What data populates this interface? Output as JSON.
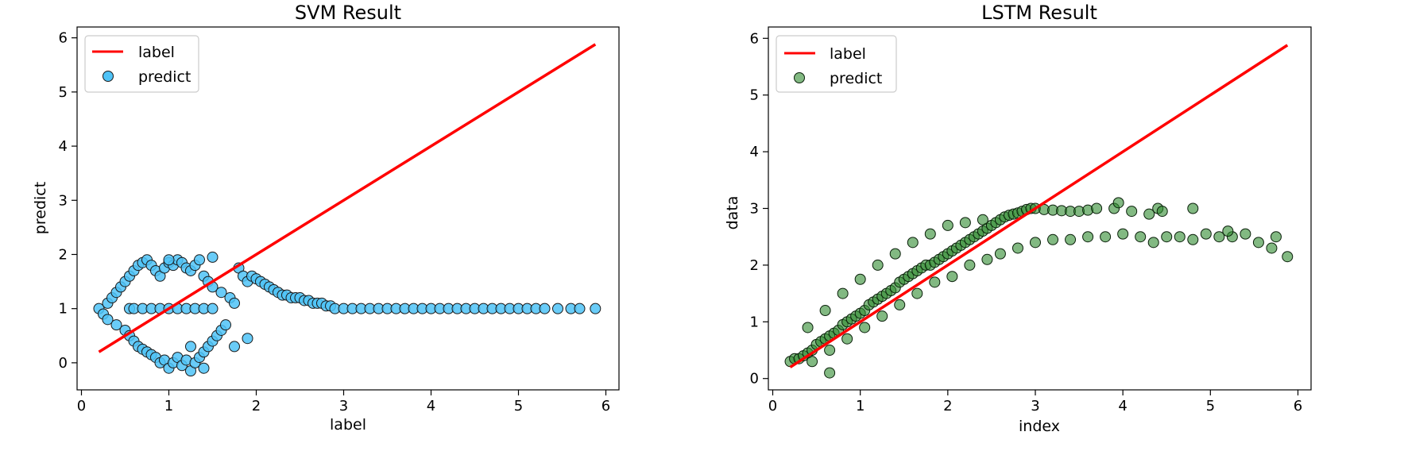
{
  "chart_data": [
    {
      "type": "scatter",
      "title": "SVM Result",
      "xlabel": "label",
      "ylabel": "predict",
      "xlim": [
        -0.05,
        6.15
      ],
      "ylim": [
        -0.5,
        6.2
      ],
      "xticks": [
        "0",
        "1",
        "2",
        "3",
        "4",
        "5",
        "6"
      ],
      "yticks": [
        "0",
        "1",
        "2",
        "3",
        "4",
        "5",
        "6"
      ],
      "grid": false,
      "legend_position": "top-left",
      "series": [
        {
          "name": "label",
          "kind": "line",
          "color": "#ff0000",
          "x": [
            0.2,
            5.88
          ],
          "y": [
            0.2,
            5.88
          ]
        },
        {
          "name": "predict",
          "kind": "scatter",
          "color": "#4fc3f7",
          "edgecolor": "#1a1a1a",
          "x": [
            0.2,
            0.25,
            0.3,
            0.3,
            0.35,
            0.4,
            0.4,
            0.45,
            0.5,
            0.5,
            0.55,
            0.55,
            0.6,
            0.6,
            0.65,
            0.65,
            0.7,
            0.7,
            0.75,
            0.75,
            0.8,
            0.8,
            0.85,
            0.85,
            0.9,
            0.9,
            0.95,
            0.95,
            1.0,
            1.0,
            1.05,
            1.05,
            1.1,
            1.1,
            1.15,
            1.15,
            1.2,
            1.2,
            1.25,
            1.25,
            1.3,
            1.3,
            1.35,
            1.35,
            1.4,
            1.4,
            1.45,
            1.45,
            1.5,
            1.5,
            1.55,
            1.6,
            1.6,
            1.65,
            1.7,
            1.75,
            1.8,
            1.85,
            1.9,
            1.95,
            2.0,
            2.05,
            2.1,
            2.15,
            2.2,
            2.25,
            2.3,
            2.35,
            2.4,
            2.45,
            2.5,
            2.55,
            2.6,
            2.65,
            2.7,
            2.75,
            2.8,
            2.85,
            0.55,
            0.6,
            0.7,
            0.8,
            0.9,
            1.0,
            1.1,
            1.2,
            1.3,
            1.4,
            1.5,
            1.25,
            1.4,
            1.75,
            1.9,
            1.0,
            1.5,
            2.9,
            3.0,
            3.1,
            3.2,
            3.3,
            3.4,
            3.5,
            3.6,
            3.7,
            3.8,
            3.9,
            4.0,
            4.1,
            4.2,
            4.3,
            4.4,
            4.5,
            4.6,
            4.7,
            4.8,
            4.9,
            5.0,
            5.1,
            5.2,
            5.3,
            5.45,
            5.6,
            5.7,
            5.88
          ],
          "y": [
            1.0,
            0.9,
            1.1,
            0.8,
            1.2,
            0.7,
            1.3,
            1.4,
            0.6,
            1.5,
            0.5,
            1.6,
            0.4,
            1.7,
            0.3,
            1.8,
            0.25,
            1.85,
            0.2,
            1.9,
            0.15,
            1.8,
            0.1,
            1.7,
            0.0,
            1.6,
            0.05,
            1.75,
            -0.1,
            1.85,
            0.0,
            1.8,
            0.1,
            1.9,
            -0.05,
            1.85,
            0.05,
            1.75,
            -0.15,
            1.7,
            0.0,
            1.8,
            0.1,
            1.9,
            0.2,
            1.6,
            0.3,
            1.5,
            0.4,
            1.4,
            0.5,
            0.6,
            1.3,
            0.7,
            1.2,
            1.1,
            1.75,
            1.6,
            1.5,
            1.6,
            1.55,
            1.5,
            1.45,
            1.4,
            1.35,
            1.3,
            1.25,
            1.25,
            1.2,
            1.2,
            1.2,
            1.15,
            1.15,
            1.1,
            1.1,
            1.1,
            1.05,
            1.05,
            1.0,
            1.0,
            1.0,
            1.0,
            1.0,
            1.0,
            1.0,
            1.0,
            1.0,
            1.0,
            1.0,
            0.3,
            -0.1,
            0.3,
            0.45,
            1.9,
            1.95,
            1.0,
            1.0,
            1.0,
            1.0,
            1.0,
            1.0,
            1.0,
            1.0,
            1.0,
            1.0,
            1.0,
            1.0,
            1.0,
            1.0,
            1.0,
            1.0,
            1.0,
            1.0,
            1.0,
            1.0,
            1.0,
            1.0,
            1.0,
            1.0,
            1.0,
            1.0,
            1.0,
            1.0,
            1.0
          ]
        }
      ]
    },
    {
      "type": "scatter",
      "title": "LSTM Result",
      "xlabel": "index",
      "ylabel": "data",
      "xlim": [
        -0.05,
        6.15
      ],
      "ylim": [
        -0.2,
        6.2
      ],
      "xticks": [
        "0",
        "1",
        "2",
        "3",
        "4",
        "5",
        "6"
      ],
      "yticks": [
        "0",
        "1",
        "2",
        "3",
        "4",
        "5",
        "6"
      ],
      "grid": false,
      "legend_position": "top-left",
      "series": [
        {
          "name": "label",
          "kind": "line",
          "color": "#ff0000",
          "x": [
            0.2,
            5.88
          ],
          "y": [
            0.2,
            5.88
          ]
        },
        {
          "name": "predict",
          "kind": "scatter",
          "color": "#2e8b2e",
          "edgecolor": "#0a1f0a",
          "x": [
            0.2,
            0.25,
            0.3,
            0.35,
            0.4,
            0.45,
            0.5,
            0.55,
            0.6,
            0.65,
            0.7,
            0.75,
            0.8,
            0.85,
            0.9,
            0.95,
            1.0,
            1.05,
            1.1,
            1.15,
            1.2,
            1.25,
            1.3,
            1.35,
            1.4,
            1.45,
            1.5,
            1.55,
            1.6,
            1.65,
            1.7,
            1.75,
            1.8,
            1.85,
            1.9,
            1.95,
            2.0,
            2.05,
            2.1,
            2.15,
            2.2,
            2.25,
            2.3,
            2.35,
            2.4,
            2.45,
            2.5,
            2.55,
            2.6,
            2.65,
            2.7,
            2.75,
            2.8,
            2.85,
            2.9,
            2.95,
            3.0,
            3.1,
            3.2,
            3.3,
            3.4,
            3.5,
            3.6,
            0.4,
            0.6,
            0.8,
            1.0,
            1.2,
            1.4,
            1.6,
            1.8,
            2.0,
            2.2,
            2.4,
            0.45,
            0.65,
            0.85,
            1.05,
            1.25,
            1.45,
            1.65,
            1.85,
            2.05,
            2.25,
            2.45,
            2.6,
            2.8,
            3.0,
            3.2,
            3.4,
            3.6,
            3.8,
            4.0,
            4.2,
            4.35,
            4.5,
            4.65,
            4.8,
            4.95,
            5.1,
            5.25,
            5.4,
            5.55,
            5.7,
            5.88,
            3.7,
            3.9,
            4.1,
            4.3,
            4.4,
            4.45,
            4.8,
            5.2,
            5.75,
            0.65,
            3.95
          ],
          "y": [
            0.3,
            0.35,
            0.35,
            0.4,
            0.45,
            0.5,
            0.6,
            0.65,
            0.7,
            0.75,
            0.8,
            0.85,
            0.95,
            1.0,
            1.05,
            1.1,
            1.15,
            1.2,
            1.3,
            1.35,
            1.4,
            1.45,
            1.5,
            1.55,
            1.6,
            1.7,
            1.75,
            1.8,
            1.85,
            1.9,
            1.95,
            2.0,
            2.0,
            2.05,
            2.1,
            2.15,
            2.2,
            2.25,
            2.3,
            2.35,
            2.4,
            2.45,
            2.5,
            2.55,
            2.6,
            2.65,
            2.7,
            2.75,
            2.8,
            2.85,
            2.88,
            2.9,
            2.92,
            2.95,
            2.98,
            3.0,
            3.0,
            2.98,
            2.97,
            2.96,
            2.95,
            2.95,
            2.97,
            0.9,
            1.2,
            1.5,
            1.75,
            2.0,
            2.2,
            2.4,
            2.55,
            2.7,
            2.75,
            2.8,
            0.3,
            0.5,
            0.7,
            0.9,
            1.1,
            1.3,
            1.5,
            1.7,
            1.8,
            2.0,
            2.1,
            2.2,
            2.3,
            2.4,
            2.45,
            2.45,
            2.5,
            2.5,
            2.55,
            2.5,
            2.4,
            2.5,
            2.5,
            2.45,
            2.55,
            2.5,
            2.5,
            2.55,
            2.4,
            2.3,
            2.15,
            3.0,
            3.0,
            2.95,
            2.9,
            3.0,
            2.95,
            3.0,
            2.6,
            2.5,
            0.1,
            3.1
          ]
        }
      ]
    }
  ]
}
